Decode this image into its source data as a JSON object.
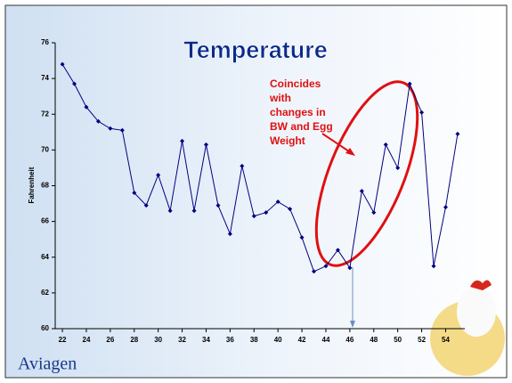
{
  "chart_data": {
    "type": "line",
    "title": "Temperature",
    "y_label": "Fahrenheit",
    "annotation": [
      "Coincides",
      "with",
      "changes in",
      "BW and Egg",
      "Weight"
    ],
    "x": [
      22,
      23,
      24,
      25,
      26,
      27,
      28,
      29,
      30,
      31,
      32,
      33,
      34,
      35,
      36,
      37,
      38,
      39,
      40,
      41,
      42,
      43,
      44,
      45,
      46,
      47,
      48,
      49,
      50,
      51,
      52,
      53,
      54,
      55
    ],
    "series": [
      {
        "name": "Temperature",
        "color": "#000080",
        "values": [
          74.8,
          73.7,
          72.4,
          71.6,
          71.2,
          71.1,
          67.6,
          66.9,
          68.6,
          66.6,
          70.5,
          66.6,
          70.3,
          66.9,
          65.3,
          69.1,
          66.3,
          66.5,
          67.1,
          66.7,
          65.1,
          63.2,
          63.5,
          64.4,
          63.4,
          67.7,
          66.5,
          70.3,
          69.0,
          73.7,
          72.1,
          63.5,
          66.8,
          70.9
        ]
      }
    ],
    "xlim": [
      21.4,
      55.6
    ],
    "xticks": [
      22,
      24,
      26,
      28,
      30,
      32,
      34,
      36,
      38,
      40,
      42,
      44,
      46,
      48,
      50,
      52,
      54
    ],
    "ylim": [
      60,
      76
    ],
    "yticks": [
      60,
      62,
      64,
      66,
      68,
      70,
      72,
      74,
      76
    ]
  },
  "logo": "Aviagen"
}
